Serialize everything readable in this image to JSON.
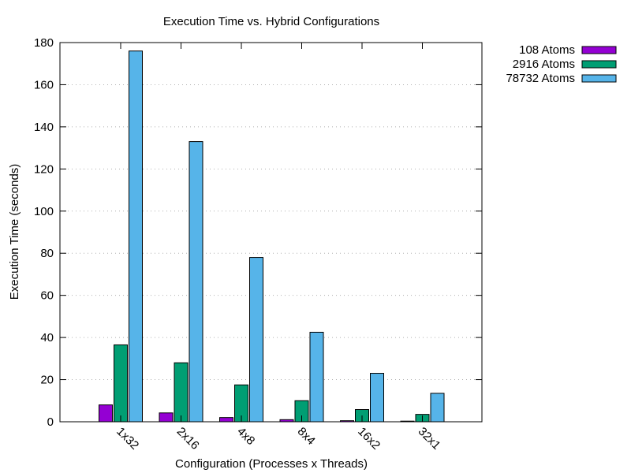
{
  "chart_data": {
    "type": "bar",
    "title": "Execution Time vs. Hybrid Configurations",
    "xlabel": "Configuration (Processes x Threads)",
    "ylabel": "Execution Time (seconds)",
    "ylim": [
      0,
      180
    ],
    "yticks": [
      0,
      20,
      40,
      60,
      80,
      100,
      120,
      140,
      160,
      180
    ],
    "grid": true,
    "legend_position": "outside-top-right",
    "categories": [
      "1x32",
      "2x16",
      "4x8",
      "8x4",
      "16x2",
      "32x1"
    ],
    "series": [
      {
        "name": "108 Atoms",
        "color": "#9400d3",
        "values": [
          8.0,
          4.2,
          2.0,
          1.0,
          0.5,
          0.3
        ]
      },
      {
        "name": "2916 Atoms",
        "color": "#009e73",
        "values": [
          36.5,
          28.0,
          17.5,
          10.0,
          5.8,
          3.5
        ]
      },
      {
        "name": "78732 Atoms",
        "color": "#56b4e9",
        "values": [
          176.0,
          133.0,
          78.0,
          42.5,
          23.0,
          13.5
        ]
      }
    ]
  }
}
